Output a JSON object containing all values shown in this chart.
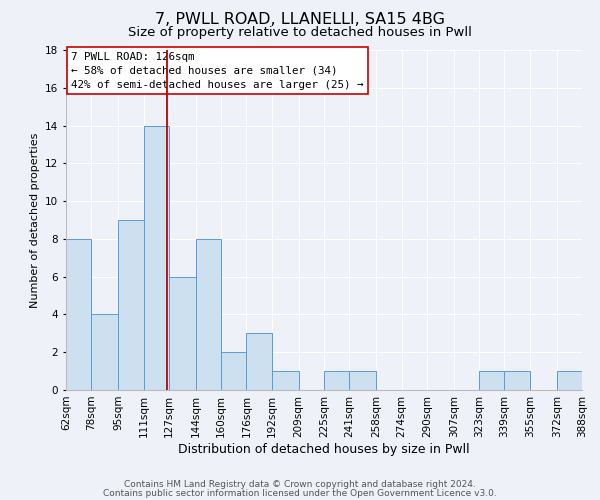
{
  "title1": "7, PWLL ROAD, LLANELLI, SA15 4BG",
  "title2": "Size of property relative to detached houses in Pwll",
  "xlabel": "Distribution of detached houses by size in Pwll",
  "ylabel": "Number of detached properties",
  "bin_edges": [
    62,
    78,
    95,
    111,
    127,
    144,
    160,
    176,
    192,
    209,
    225,
    241,
    258,
    274,
    290,
    307,
    323,
    339,
    355,
    372,
    388
  ],
  "bin_labels": [
    "62sqm",
    "78sqm",
    "95sqm",
    "111sqm",
    "127sqm",
    "144sqm",
    "160sqm",
    "176sqm",
    "192sqm",
    "209sqm",
    "225sqm",
    "241sqm",
    "258sqm",
    "274sqm",
    "290sqm",
    "307sqm",
    "323sqm",
    "339sqm",
    "355sqm",
    "372sqm",
    "388sqm"
  ],
  "counts": [
    8,
    4,
    9,
    14,
    6,
    8,
    2,
    3,
    1,
    0,
    1,
    1,
    0,
    0,
    0,
    0,
    1,
    1,
    0,
    1
  ],
  "bar_color": "#cce0f0",
  "bar_edge_color": "#5b9bd5",
  "vline_x": 126,
  "vline_color": "#c00000",
  "ann_line1": "7 PWLL ROAD: 126sqm",
  "ann_line2": "← 58% of detached houses are smaller (34)",
  "ann_line3": "42% of semi-detached houses are larger (25) →",
  "ylim": [
    0,
    18
  ],
  "yticks": [
    0,
    2,
    4,
    6,
    8,
    10,
    12,
    14,
    16,
    18
  ],
  "footer1": "Contains HM Land Registry data © Crown copyright and database right 2024.",
  "footer2": "Contains public sector information licensed under the Open Government Licence v3.0.",
  "bg_color": "#eef2f8",
  "plot_bg_color": "#eef2f8",
  "title1_fontsize": 11.5,
  "title2_fontsize": 9.5,
  "xlabel_fontsize": 9,
  "ylabel_fontsize": 8,
  "tick_fontsize": 7.5,
  "footer_fontsize": 6.5
}
